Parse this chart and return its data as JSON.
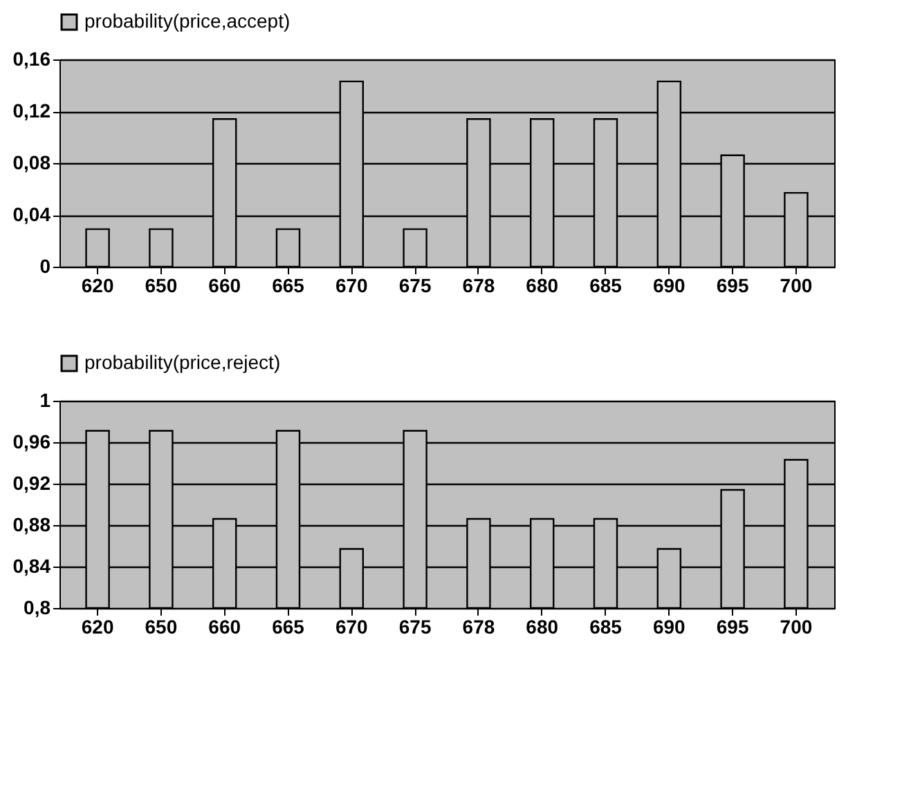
{
  "chart_data": [
    {
      "type": "bar",
      "categories": [
        "620",
        "650",
        "660",
        "665",
        "670",
        "675",
        "678",
        "680",
        "685",
        "690",
        "695",
        "700"
      ],
      "series": [
        {
          "name": "probability(price,accept)",
          "color": "#c0c0c0",
          "values": [
            0.029,
            0.029,
            0.114,
            0.029,
            0.143,
            0.029,
            0.114,
            0.114,
            0.114,
            0.143,
            0.086,
            0.057
          ]
        }
      ],
      "ylim": [
        0,
        0.16
      ],
      "yticks": [
        {
          "value": 0,
          "label": "0"
        },
        {
          "value": 0.04,
          "label": "0,04"
        },
        {
          "value": 0.08,
          "label": "0,08"
        },
        {
          "value": 0.12,
          "label": "0,12"
        },
        {
          "value": 0.16,
          "label": "0,16"
        }
      ],
      "grid": "y",
      "legend": "top"
    },
    {
      "type": "bar",
      "categories": [
        "620",
        "650",
        "660",
        "665",
        "670",
        "675",
        "678",
        "680",
        "685",
        "690",
        "695",
        "700"
      ],
      "series": [
        {
          "name": "probability(price,reject)",
          "color": "#c0c0c0",
          "values": [
            0.971,
            0.971,
            0.886,
            0.971,
            0.857,
            0.971,
            0.886,
            0.886,
            0.886,
            0.857,
            0.914,
            0.943
          ]
        }
      ],
      "ylim": [
        0.8,
        1
      ],
      "yticks": [
        {
          "value": 0.8,
          "label": "0,8"
        },
        {
          "value": 0.84,
          "label": "0,84"
        },
        {
          "value": 0.88,
          "label": "0,88"
        },
        {
          "value": 0.92,
          "label": "0,92"
        },
        {
          "value": 0.96,
          "label": "0,96"
        },
        {
          "value": 1,
          "label": "1"
        }
      ],
      "grid": "y",
      "legend": "top"
    }
  ]
}
